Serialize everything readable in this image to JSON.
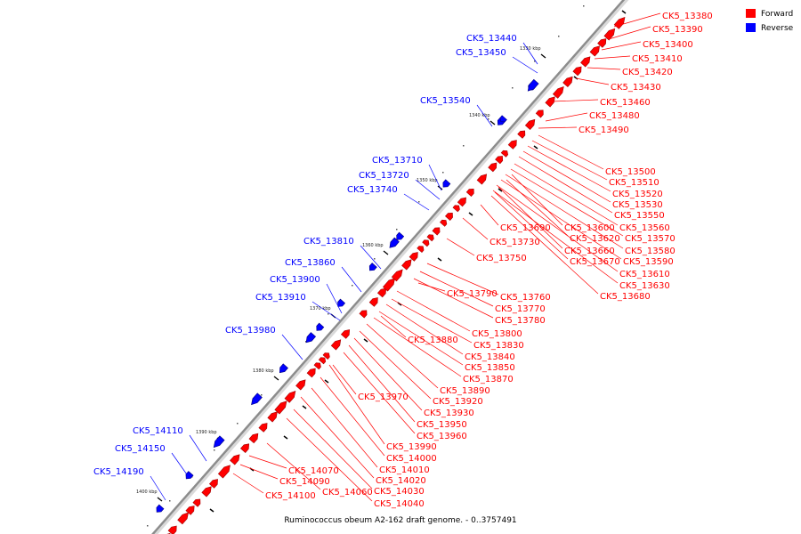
{
  "caption": "Ruminococcus obeum A2-162 draft genome. - 0..3757491",
  "legend": [
    {
      "label": "Forward",
      "color": "#ff0000"
    },
    {
      "label": "Reverse",
      "color": "#0000ff"
    }
  ],
  "colors": {
    "forward": "#ff0000",
    "forward_dark": "#a00000",
    "reverse": "#0000ff",
    "reverse_dark": "#000080",
    "backbone": "#8c8c8c",
    "tick": "#000000",
    "label_forward": "#ff0000",
    "label_reverse": "#0000ff"
  },
  "ticks": [
    "1330 kbp",
    "1340 kbp",
    "1350 kbp",
    "1360 kbp",
    "1370 kbp",
    "1380 kbp",
    "1390 kbp",
    "1400 kbp"
  ],
  "forward_labels": [
    "CK5_13380",
    "CK5_13390",
    "CK5_13400",
    "CK5_13410",
    "CK5_13420",
    "CK5_13430",
    "CK5_13460",
    "CK5_13480",
    "CK5_13490",
    "CK5_13500",
    "CK5_13510",
    "CK5_13520",
    "CK5_13530",
    "CK5_13550",
    "CK5_13560",
    "CK5_13570",
    "CK5_13580",
    "CK5_13590",
    "CK5_13610",
    "CK5_13630",
    "CK5_13680",
    "CK5_13600",
    "CK5_13620",
    "CK5_13660",
    "CK5_13670",
    "CK5_13690",
    "CK5_13730",
    "CK5_13750",
    "CK5_13760",
    "CK5_13770",
    "CK5_13780",
    "CK5_13790",
    "CK5_13800",
    "CK5_13830",
    "CK5_13840",
    "CK5_13850",
    "CK5_13870",
    "CK5_13880",
    "CK5_13890",
    "CK5_13920",
    "CK5_13930",
    "CK5_13950",
    "CK5_13960",
    "CK5_13970",
    "CK5_13990",
    "CK5_14000",
    "CK5_14010",
    "CK5_14020",
    "CK5_14030",
    "CK5_14040",
    "CK5_14060",
    "CK5_14070",
    "CK5_14090",
    "CK5_14100"
  ],
  "reverse_labels": [
    "CK5_13440",
    "CK5_13450",
    "CK5_13540",
    "CK5_13710",
    "CK5_13720",
    "CK5_13740",
    "CK5_13810",
    "CK5_13860",
    "CK5_13900",
    "CK5_13910",
    "CK5_13980",
    "CK5_14110",
    "CK5_14150",
    "CK5_14190"
  ]
}
